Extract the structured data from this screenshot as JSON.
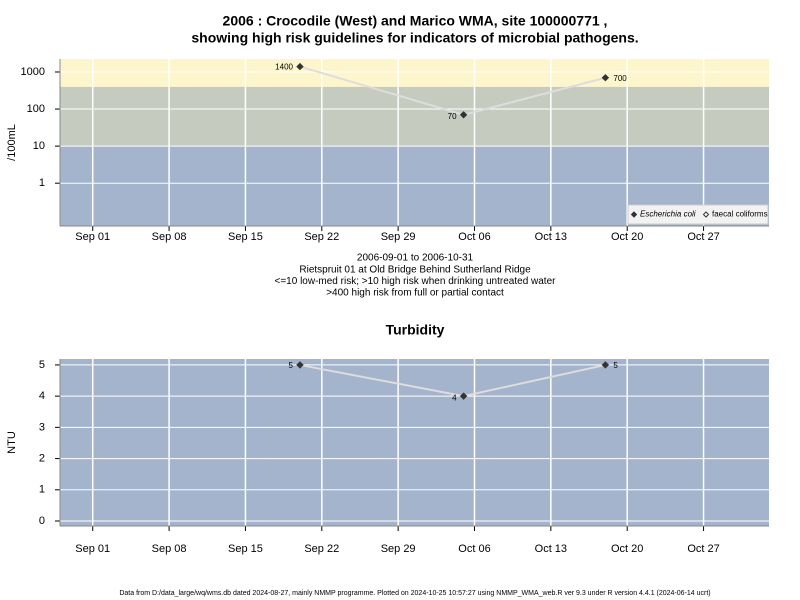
{
  "chart_data": [
    {
      "type": "line",
      "title": [
        "2006 : Crocodile (West) and Marico WMA, site 100000771 ,",
        "showing high risk guidelines for indicators of microbial pathogens."
      ],
      "ylabel": "/100mL",
      "log_y": true,
      "notes": [
        "2006-09-01 to 2006-10-31",
        "Rietspruit 01 at Old Bridge Behind Sutherland Ridge",
        "<=10 low-med risk; >10 high risk when drinking untreated water",
        ">400 high risk from full or partial contact"
      ],
      "x": [
        "2006-09-20",
        "2006-10-05",
        "2006-10-18"
      ],
      "xlim": [
        "2006-08-29",
        "2006-11-02"
      ],
      "xticks": [
        {
          "value": "2006-09-01",
          "label": "Sep 01"
        },
        {
          "value": "2006-09-08",
          "label": "Sep 08"
        },
        {
          "value": "2006-09-15",
          "label": "Sep 15"
        },
        {
          "value": "2006-09-22",
          "label": "Sep 22"
        },
        {
          "value": "2006-09-29",
          "label": "Sep 29"
        },
        {
          "value": "2006-10-06",
          "label": "Oct 06"
        },
        {
          "value": "2006-10-13",
          "label": "Oct 13"
        },
        {
          "value": "2006-10-20",
          "label": "Oct 20"
        },
        {
          "value": "2006-10-27",
          "label": "Oct 27"
        }
      ],
      "ylim": [
        0.07,
        2240
      ],
      "yticks": [
        1,
        10,
        100,
        1000
      ],
      "thresholds": [
        10,
        400
      ],
      "band_colors": [
        "#a3b4cc",
        "#c5ccbf",
        "#fdf6cc"
      ],
      "grid": true,
      "legend": "bottom-right",
      "series": [
        {
          "name": "Escherichia coli",
          "color": "#333333",
          "line_color": "#dddddd",
          "marker": "filled",
          "values": [
            1400,
            70,
            700
          ]
        },
        {
          "name": "faecal coliforms",
          "color": "#333333",
          "line_color": "#dddddd",
          "marker": "hollow",
          "values": [
            null,
            null,
            null
          ]
        }
      ]
    },
    {
      "type": "line",
      "title": [
        "Turbidity"
      ],
      "ylabel": "NTU",
      "log_y": false,
      "x": [
        "2006-09-20",
        "2006-10-05",
        "2006-10-18"
      ],
      "xlim": [
        "2006-08-29",
        "2006-11-02"
      ],
      "xticks": [
        {
          "value": "2006-09-01",
          "label": "Sep 01"
        },
        {
          "value": "2006-09-08",
          "label": "Sep 08"
        },
        {
          "value": "2006-09-15",
          "label": "Sep 15"
        },
        {
          "value": "2006-09-22",
          "label": "Sep 22"
        },
        {
          "value": "2006-09-29",
          "label": "Sep 29"
        },
        {
          "value": "2006-10-06",
          "label": "Oct 06"
        },
        {
          "value": "2006-10-13",
          "label": "Oct 13"
        },
        {
          "value": "2006-10-20",
          "label": "Oct 20"
        },
        {
          "value": "2006-10-27",
          "label": "Oct 27"
        }
      ],
      "ylim": [
        -0.16,
        5.19
      ],
      "yticks": [
        0,
        1,
        2,
        3,
        4,
        5
      ],
      "band_colors": [
        "#a3b4cc"
      ],
      "grid": true,
      "series": [
        {
          "name": "Turbidity",
          "color": "#333333",
          "line_color": "#dddddd",
          "marker": "filled",
          "values": [
            5,
            4,
            5
          ]
        }
      ]
    }
  ],
  "footer": "Data from D:/data_large/wq/wms.db dated 2024-08-27, mainly NMMP programme. Plotted on 2024-10-25 10:57:27 using NMMP_WMA_web.R ver 9.3 under R version 4.4.1 (2024-06-14 ucrt)"
}
